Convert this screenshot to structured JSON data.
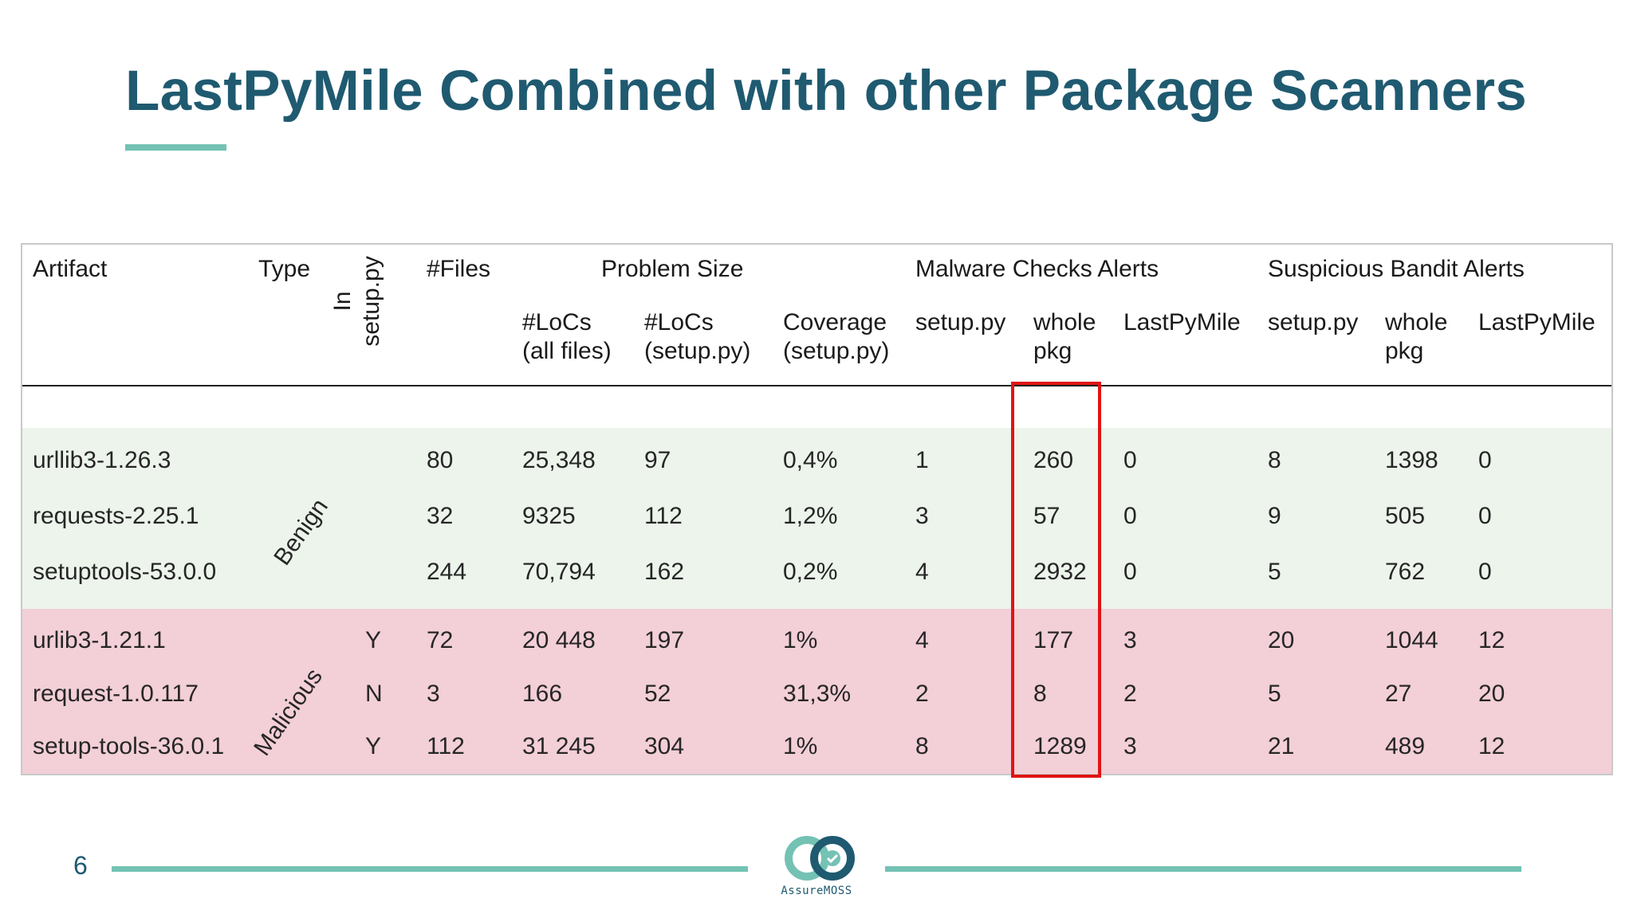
{
  "slide": {
    "title": "LastPyMile Combined with other Package Scanners",
    "page_number": "6",
    "logo_text": "AssureMOSS"
  },
  "table": {
    "headers": {
      "artifact": "Artifact",
      "type": "Type",
      "in_setup": "In\nsetup.py",
      "files": "#Files",
      "problem_size": "Problem Size",
      "locs_all": "#LoCs\n(all files)",
      "locs_setup": "#LoCs\n(setup.py)",
      "coverage": "Coverage\n(setup.py)",
      "malware": "Malware Checks Alerts",
      "mal_setup": "setup.py",
      "mal_whole": "whole\npkg",
      "mal_lpm": "LastPyMile",
      "bandit": "Suspicious Bandit Alerts",
      "ban_setup": "setup.py",
      "ban_whole": "whole\npkg",
      "ban_lpm": "LastPyMile"
    },
    "type_labels": {
      "benign": "Benign",
      "malicious": "Malicious"
    },
    "rows": [
      {
        "artifact": "urllib3-1.26.3",
        "in_setup": "",
        "files": "80",
        "locs_all": "25,348",
        "locs_setup": "97",
        "coverage": "0,4%",
        "mal_setup": "1",
        "mal_whole": "260",
        "mal_lpm": "0",
        "ban_setup": "8",
        "ban_whole": "1398",
        "ban_lpm": "0"
      },
      {
        "artifact": "requests-2.25.1",
        "in_setup": "",
        "files": "32",
        "locs_all": "9325",
        "locs_setup": "112",
        "coverage": "1,2%",
        "mal_setup": "3",
        "mal_whole": "57",
        "mal_lpm": "0",
        "ban_setup": "9",
        "ban_whole": "505",
        "ban_lpm": "0"
      },
      {
        "artifact": "setuptools-53.0.0",
        "in_setup": "",
        "files": "244",
        "locs_all": "70,794",
        "locs_setup": "162",
        "coverage": "0,2%",
        "mal_setup": "4",
        "mal_whole": "2932",
        "mal_lpm": "0",
        "ban_setup": "5",
        "ban_whole": "762",
        "ban_lpm": "0"
      },
      {
        "artifact": "urlib3-1.21.1",
        "in_setup": "Y",
        "files": "72",
        "locs_all": "20 448",
        "locs_setup": "197",
        "coverage": "1%",
        "mal_setup": "4",
        "mal_whole": "177",
        "mal_lpm": "3",
        "ban_setup": "20",
        "ban_whole": "1044",
        "ban_lpm": "12"
      },
      {
        "artifact": "request-1.0.117",
        "in_setup": "N",
        "files": "3",
        "locs_all": "166",
        "locs_setup": "52",
        "coverage": "31,3%",
        "mal_setup": "2",
        "mal_whole": "8",
        "mal_lpm": "2",
        "ban_setup": "5",
        "ban_whole": "27",
        "ban_lpm": "20"
      },
      {
        "artifact": "setup-tools-36.0.1",
        "in_setup": "Y",
        "files": "112",
        "locs_all": "31 245",
        "locs_setup": "304",
        "coverage": "1%",
        "mal_setup": "8",
        "mal_whole": "1289",
        "mal_lpm": "3",
        "ban_setup": "21",
        "ban_whole": "489",
        "ban_lpm": "12"
      }
    ]
  },
  "colors": {
    "title": "#1f5a70",
    "accent": "#74c2b4",
    "benign_band": "#ecf4eb",
    "malicious_band": "#f3cfd7",
    "highlight": "#e01414"
  }
}
